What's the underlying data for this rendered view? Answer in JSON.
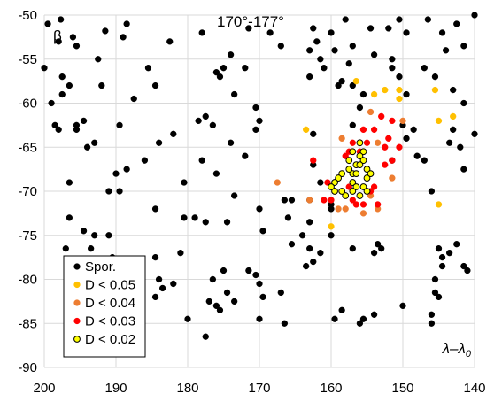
{
  "chart_data": {
    "type": "scatter",
    "title": "170°-177°",
    "xlabel": "λ–λ",
    "xlabel_subscript": "0",
    "ylabel": "β",
    "xlim": [
      200,
      140
    ],
    "ylim": [
      -90,
      -50
    ],
    "x_ticks": [
      200,
      190,
      180,
      170,
      160,
      150,
      140
    ],
    "y_ticks": [
      -50,
      -55,
      -60,
      -65,
      -70,
      -75,
      -80,
      -85,
      -90
    ],
    "x_tick_labels": [
      "200",
      "190",
      "180",
      "170",
      "160",
      "150",
      "140"
    ],
    "y_tick_labels": [
      "-50",
      "-55",
      "-60",
      "-65",
      "-70",
      "-75",
      "-80",
      "-85",
      "-90"
    ],
    "legend_position": "bottom-left",
    "series": [
      {
        "name": "Spor.",
        "color": "#000000",
        "stroke": "#000000",
        "points": [
          [
            199.5,
            -51.0
          ],
          [
            197.7,
            -50.5
          ],
          [
            191.5,
            -51.8
          ],
          [
            188.5,
            -51.0
          ],
          [
            198.0,
            -53.0
          ],
          [
            200.0,
            -56.0
          ],
          [
            196.0,
            -52.5
          ],
          [
            195.5,
            -53.5
          ],
          [
            192.5,
            -55.0
          ],
          [
            189.0,
            -52.5
          ],
          [
            185.5,
            -56.0
          ],
          [
            182.5,
            -53.0
          ],
          [
            178.0,
            -52.0
          ],
          [
            174.0,
            -54.5
          ],
          [
            171.5,
            -51.5
          ],
          [
            167.0,
            -53.5
          ],
          [
            168.5,
            -52.0
          ],
          [
            162.5,
            -51.5
          ],
          [
            162.0,
            -53.0
          ],
          [
            160.0,
            -52.0
          ],
          [
            158.0,
            -50.5
          ],
          [
            154.5,
            -51.5
          ],
          [
            152.0,
            -51.5
          ],
          [
            150.5,
            -50.5
          ],
          [
            149.5,
            -52.0
          ],
          [
            146.5,
            -50.5
          ],
          [
            144.5,
            -52.0
          ],
          [
            142.5,
            -51.0
          ],
          [
            140.0,
            -50.0
          ],
          [
            141.5,
            -53.5
          ],
          [
            144.0,
            -54.0
          ],
          [
            163.0,
            -54.0
          ],
          [
            161.5,
            -55.0
          ],
          [
            157.0,
            -53.5
          ],
          [
            154.0,
            -54.5
          ],
          [
            151.5,
            -55.0
          ],
          [
            159.5,
            -54.0
          ],
          [
            157.5,
            -55.5
          ],
          [
            161.0,
            -56.0
          ],
          [
            163.0,
            -57.0
          ],
          [
            147.0,
            -56.0
          ],
          [
            150.5,
            -57.0
          ],
          [
            149.5,
            -59.0
          ],
          [
            151.5,
            -56.0
          ],
          [
            145.5,
            -57.0
          ],
          [
            143.0,
            -58.5
          ],
          [
            141.5,
            -60.0
          ],
          [
            197.5,
            -57.0
          ],
          [
            197.5,
            -59.0
          ],
          [
            199.0,
            -60.0
          ],
          [
            196.5,
            -58.0
          ],
          [
            192.0,
            -58.0
          ],
          [
            187.5,
            -59.5
          ],
          [
            184.5,
            -58.0
          ],
          [
            176.0,
            -56.5
          ],
          [
            175.0,
            -56.0
          ],
          [
            172.0,
            -56.0
          ],
          [
            175.5,
            -57.0
          ],
          [
            173.5,
            -59.0
          ],
          [
            170.5,
            -60.5
          ],
          [
            158.5,
            -57.5
          ],
          [
            159.0,
            -58.0
          ],
          [
            157.0,
            -58.0
          ],
          [
            155.5,
            -59.0
          ],
          [
            198.5,
            -62.5
          ],
          [
            198.0,
            -63.0
          ],
          [
            194.5,
            -62.0
          ],
          [
            195.5,
            -63.0
          ],
          [
            193.0,
            -64.5
          ],
          [
            194.0,
            -65.0
          ],
          [
            189.5,
            -62.5
          ],
          [
            182.0,
            -63.5
          ],
          [
            178.5,
            -62.0
          ],
          [
            177.5,
            -61.5
          ],
          [
            176.5,
            -62.5
          ],
          [
            170.0,
            -62.0
          ],
          [
            170.5,
            -63.0
          ],
          [
            174.0,
            -64.5
          ],
          [
            172.0,
            -66.0
          ],
          [
            178.0,
            -66.5
          ],
          [
            176.0,
            -68.0
          ],
          [
            180.5,
            -69.0
          ],
          [
            184.0,
            -64.5
          ],
          [
            186.0,
            -66.5
          ],
          [
            188.5,
            -67.5
          ],
          [
            190.0,
            -68.0
          ],
          [
            196.5,
            -69.0
          ],
          [
            191.0,
            -70.0
          ],
          [
            189.5,
            -70.0
          ],
          [
            184.5,
            -72.0
          ],
          [
            180.5,
            -73.0
          ],
          [
            179.0,
            -73.0
          ],
          [
            177.5,
            -73.5
          ],
          [
            174.5,
            -73.5
          ],
          [
            173.5,
            -70.5
          ],
          [
            170.0,
            -72.0
          ],
          [
            166.5,
            -71.0
          ],
          [
            166.0,
            -73.0
          ],
          [
            169.5,
            -74.5
          ],
          [
            165.5,
            -76.0
          ],
          [
            164.0,
            -75.0
          ],
          [
            163.0,
            -76.5
          ],
          [
            161.5,
            -77.0
          ],
          [
            162.5,
            -78.0
          ],
          [
            163.5,
            -78.5
          ],
          [
            160.0,
            -75.0
          ],
          [
            157.0,
            -76.5
          ],
          [
            153.5,
            -76.0
          ],
          [
            154.0,
            -77.0
          ],
          [
            153.0,
            -76.5
          ],
          [
            145.0,
            -76.5
          ],
          [
            144.5,
            -77.5
          ],
          [
            143.5,
            -77.0
          ],
          [
            142.5,
            -76.0
          ],
          [
            141.5,
            -78.5
          ],
          [
            141.0,
            -79.0
          ],
          [
            144.5,
            -78.5
          ],
          [
            145.5,
            -80.0
          ],
          [
            145.5,
            -81.5
          ],
          [
            145.0,
            -82.0
          ],
          [
            146.0,
            -84.0
          ],
          [
            146.0,
            -85.0
          ],
          [
            150.0,
            -83.0
          ],
          [
            154.0,
            -84.0
          ],
          [
            158.5,
            -83.5
          ],
          [
            159.5,
            -84.5
          ],
          [
            156.0,
            -85.0
          ],
          [
            155.5,
            -84.5
          ],
          [
            148.5,
            -63.0
          ],
          [
            148.0,
            -66.0
          ],
          [
            147.0,
            -66.5
          ],
          [
            143.5,
            -64.5
          ],
          [
            143.0,
            -63.0
          ],
          [
            142.0,
            -65.0
          ],
          [
            141.5,
            -67.5
          ],
          [
            140.0,
            -63.5
          ],
          [
            149.5,
            -64.0
          ],
          [
            150.0,
            -62.5
          ],
          [
            146.0,
            -70.0
          ],
          [
            151.5,
            -66.5
          ],
          [
            157.0,
            -62.5
          ],
          [
            156.0,
            -60.5
          ],
          [
            162.5,
            -63.5
          ],
          [
            162.5,
            -67.0
          ],
          [
            161.5,
            -69.0
          ],
          [
            163.0,
            -71.0
          ],
          [
            160.0,
            -71.5
          ],
          [
            165.5,
            -71.0
          ],
          [
            163.0,
            -73.5
          ],
          [
            160.0,
            -72.0
          ],
          [
            196.5,
            -73.0
          ],
          [
            194.5,
            -74.5
          ],
          [
            193.0,
            -75.0
          ],
          [
            191.0,
            -75.0
          ],
          [
            193.5,
            -76.5
          ],
          [
            197.0,
            -76.5
          ],
          [
            195.0,
            -78.0
          ],
          [
            192.0,
            -78.0
          ],
          [
            190.5,
            -77.5
          ],
          [
            187.5,
            -79.0
          ],
          [
            184.5,
            -77.5
          ],
          [
            184.0,
            -80.0
          ],
          [
            183.5,
            -81.0
          ],
          [
            182.0,
            -80.5
          ],
          [
            181.0,
            -77.0
          ],
          [
            176.5,
            -80.0
          ],
          [
            175.0,
            -79.0
          ],
          [
            174.5,
            -81.5
          ],
          [
            171.5,
            -79.0
          ],
          [
            170.5,
            -79.5
          ],
          [
            170.0,
            -80.5
          ],
          [
            169.5,
            -82.0
          ],
          [
            167.0,
            -81.5
          ],
          [
            166.5,
            -85.0
          ],
          [
            177.0,
            -82.5
          ],
          [
            176.0,
            -83.0
          ],
          [
            175.5,
            -83.5
          ],
          [
            177.5,
            -86.5
          ],
          [
            173.5,
            -82.5
          ],
          [
            170.0,
            -84.5
          ],
          [
            180.0,
            -84.5
          ],
          [
            184.5,
            -82.0
          ],
          [
            195.5,
            -62.5
          ]
        ]
      },
      {
        "name": "D < 0.05",
        "color": "#FFC000",
        "stroke": "#FFC000",
        "points": [
          [
            156.5,
            -57.5
          ],
          [
            152.5,
            -58.5
          ],
          [
            150.5,
            -58.5
          ],
          [
            150.5,
            -59.5
          ],
          [
            145.5,
            -58.5
          ],
          [
            143.0,
            -61.5
          ],
          [
            145.0,
            -62.0
          ],
          [
            145.0,
            -71.5
          ],
          [
            160.0,
            -74.0
          ],
          [
            163.5,
            -63.0
          ],
          [
            154.0,
            -59.0
          ]
        ]
      },
      {
        "name": "D < 0.04",
        "color": "#ED7D31",
        "stroke": "#ED7D31",
        "points": [
          [
            154.5,
            -61.0
          ],
          [
            150.0,
            -62.0
          ],
          [
            153.5,
            -64.5
          ],
          [
            158.5,
            -64.0
          ],
          [
            151.5,
            -68.5
          ],
          [
            167.5,
            -69.0
          ],
          [
            163.0,
            -71.0
          ],
          [
            159.0,
            -72.0
          ],
          [
            158.0,
            -72.0
          ],
          [
            155.5,
            -72.5
          ],
          [
            153.5,
            -72.0
          ],
          [
            154.5,
            -70.5
          ]
        ]
      },
      {
        "name": "D < 0.03",
        "color": "#FF0000",
        "stroke": "#FF0000",
        "points": [
          [
            153.0,
            -61.5
          ],
          [
            151.5,
            -62.0
          ],
          [
            152.0,
            -64.0
          ],
          [
            154.0,
            -63.0
          ],
          [
            155.5,
            -63.0
          ],
          [
            157.0,
            -64.5
          ],
          [
            157.5,
            -65.5
          ],
          [
            158.0,
            -66.0
          ],
          [
            152.5,
            -65.0
          ],
          [
            151.5,
            -66.5
          ],
          [
            156.0,
            -65.5
          ],
          [
            155.0,
            -64.5
          ],
          [
            162.5,
            -66.5
          ],
          [
            160.5,
            -69.0
          ],
          [
            159.5,
            -70.0
          ],
          [
            157.5,
            -69.5
          ],
          [
            154.5,
            -70.0
          ],
          [
            154.0,
            -69.5
          ],
          [
            153.5,
            -71.5
          ],
          [
            155.5,
            -71.5
          ],
          [
            156.5,
            -71.5
          ],
          [
            157.0,
            -71.0
          ],
          [
            160.0,
            -71.0
          ],
          [
            161.0,
            -71.0
          ],
          [
            152.5,
            -67.0
          ],
          [
            150.5,
            -65.0
          ]
        ]
      },
      {
        "name": "D < 0.02",
        "color": "#FFFF00",
        "stroke": "#000000",
        "points": [
          [
            156.0,
            -64.5
          ],
          [
            155.5,
            -65.5
          ],
          [
            156.0,
            -66.0
          ],
          [
            157.5,
            -66.5
          ],
          [
            156.5,
            -67.0
          ],
          [
            155.0,
            -67.5
          ],
          [
            157.0,
            -68.0
          ],
          [
            157.5,
            -67.5
          ],
          [
            158.5,
            -68.0
          ],
          [
            159.0,
            -68.5
          ],
          [
            157.0,
            -69.0
          ],
          [
            156.5,
            -69.5
          ],
          [
            155.5,
            -69.5
          ],
          [
            155.0,
            -68.5
          ],
          [
            156.5,
            -68.0
          ],
          [
            159.5,
            -69.0
          ],
          [
            159.5,
            -70.0
          ],
          [
            158.0,
            -70.5
          ],
          [
            157.0,
            -70.0
          ],
          [
            155.0,
            -70.0
          ],
          [
            156.0,
            -70.5
          ],
          [
            158.5,
            -70.0
          ],
          [
            160.0,
            -69.5
          ],
          [
            154.5,
            -68.0
          ],
          [
            155.5,
            -66.5
          ],
          [
            157.0,
            -65.5
          ],
          [
            156.0,
            -67.0
          ]
        ]
      }
    ]
  }
}
